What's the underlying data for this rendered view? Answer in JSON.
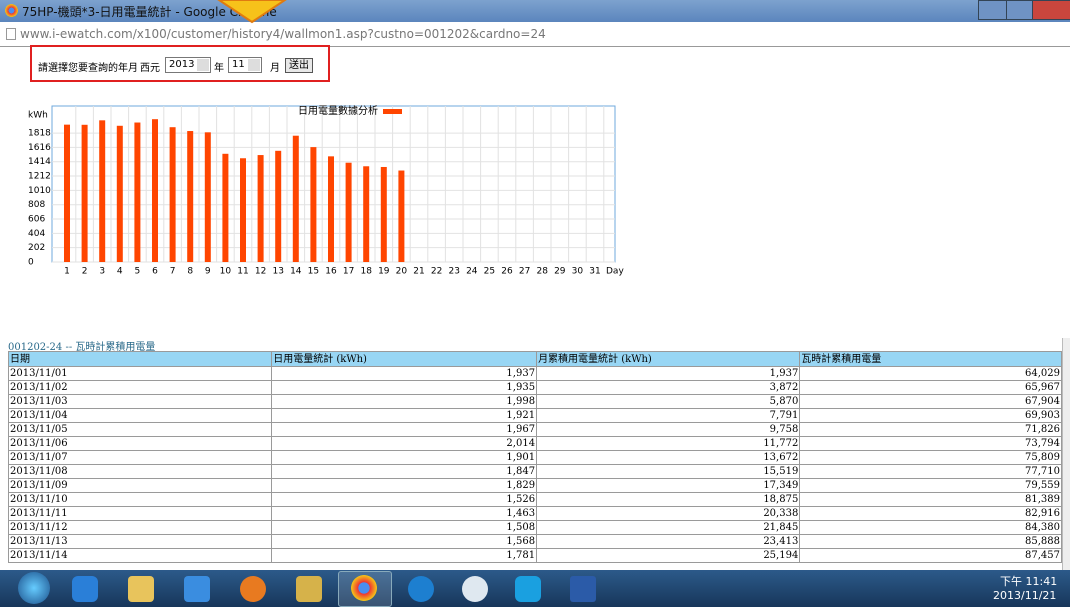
{
  "window": {
    "title": "75HP-機頭*3-日用電量統計 - Google Chrome",
    "url": "www.i-ewatch.com/x100/customer/history4/wallmon1.asp?custno=001202&cardno=24"
  },
  "form": {
    "prompt": "請選擇您要查詢的年月",
    "era": "西元",
    "year": "2013",
    "year_unit": "年",
    "month": "11",
    "month_unit": "月",
    "submit": "送出"
  },
  "chart_data": {
    "type": "bar",
    "y_label": "kWh",
    "x_label": "Day",
    "categories": [
      "1",
      "2",
      "3",
      "4",
      "5",
      "6",
      "7",
      "8",
      "9",
      "10",
      "11",
      "12",
      "13",
      "14",
      "15",
      "16",
      "17",
      "18",
      "19",
      "20",
      "21",
      "22",
      "23",
      "24",
      "25",
      "26",
      "27",
      "28",
      "29",
      "30",
      "31"
    ],
    "series": [
      {
        "name": "日用電量數據分析",
        "color": "#ff4500",
        "values": [
          1937,
          1935,
          1998,
          1921,
          1967,
          2014,
          1901,
          1847,
          1829,
          1526,
          1463,
          1508,
          1568,
          1781,
          1620,
          1490,
          1400,
          1350,
          1340,
          1290,
          null,
          null,
          null,
          null,
          null,
          null,
          null,
          null,
          null,
          null,
          null
        ]
      }
    ],
    "ylim": [
      0,
      2200
    ],
    "yticks": [
      0,
      202,
      404,
      606,
      808,
      1010,
      1212,
      1414,
      1616,
      1818
    ],
    "grid": true
  },
  "table": {
    "title": "001202-24 -- 瓦時計累積用電量",
    "columns": [
      "日期",
      "日用電量統計 (kWh)",
      "月累積用電量統計 (kWh)",
      "瓦時計累積用電量"
    ],
    "rows": [
      [
        "2013/11/01",
        "1,937",
        "1,937",
        "64,029"
      ],
      [
        "2013/11/02",
        "1,935",
        "3,872",
        "65,967"
      ],
      [
        "2013/11/03",
        "1,998",
        "5,870",
        "67,904"
      ],
      [
        "2013/11/04",
        "1,921",
        "7,791",
        "69,903"
      ],
      [
        "2013/11/05",
        "1,967",
        "9,758",
        "71,826"
      ],
      [
        "2013/11/06",
        "2,014",
        "11,772",
        "73,794"
      ],
      [
        "2013/11/07",
        "1,901",
        "13,672",
        "75,809"
      ],
      [
        "2013/11/08",
        "1,847",
        "15,519",
        "77,710"
      ],
      [
        "2013/11/09",
        "1,829",
        "17,349",
        "79,559"
      ],
      [
        "2013/11/10",
        "1,526",
        "18,875",
        "81,389"
      ],
      [
        "2013/11/11",
        "1,463",
        "20,338",
        "82,916"
      ],
      [
        "2013/11/12",
        "1,508",
        "21,845",
        "84,380"
      ],
      [
        "2013/11/13",
        "1,568",
        "23,413",
        "85,888"
      ],
      [
        "2013/11/14",
        "1,781",
        "25,194",
        "87,457"
      ]
    ]
  },
  "taskbar": {
    "time": "下午 11:41",
    "date": "2013/11/21"
  }
}
